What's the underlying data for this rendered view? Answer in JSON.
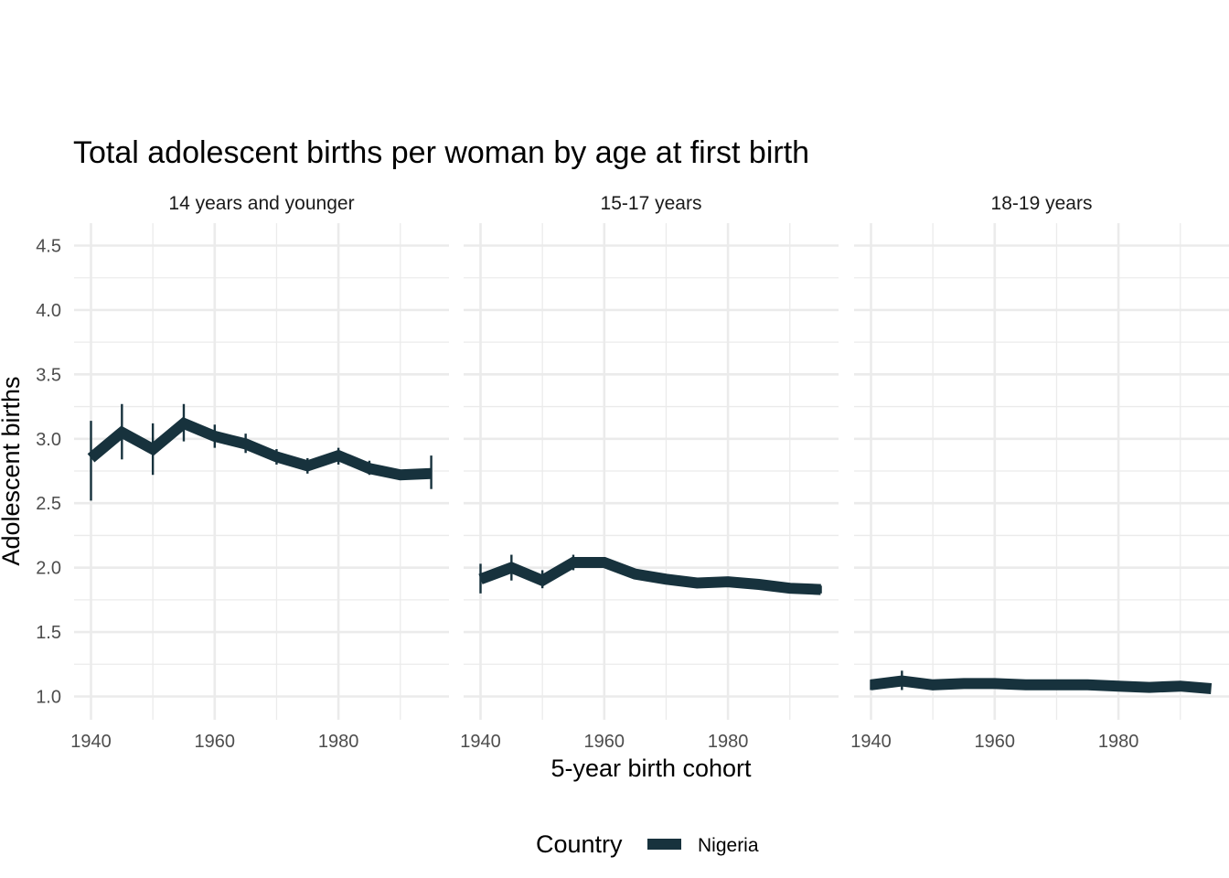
{
  "chart_data": {
    "type": "line",
    "title": "Total adolescent births per woman by age at first birth",
    "xlabel": "5-year birth cohort",
    "ylabel": "Adolescent births",
    "xlim": [
      1940,
      1994
    ],
    "ylim": [
      1.0,
      4.5
    ],
    "x_ticks": [
      1940,
      1960,
      1980
    ],
    "y_ticks": [
      1.0,
      1.5,
      2.0,
      2.5,
      3.0,
      3.5,
      4.0,
      4.5
    ],
    "grid": true,
    "legend": {
      "title": "Country",
      "position": "bottom",
      "entries": [
        "Nigeria"
      ]
    },
    "series_color": "#17323d",
    "panels": [
      {
        "label": "14 years and younger",
        "series": [
          {
            "name": "Nigeria",
            "x": [
              1940,
              1945,
              1950,
              1955,
              1960,
              1965,
              1970,
              1975,
              1980,
              1985,
              1990,
              1995
            ],
            "y": [
              2.85,
              3.05,
              2.92,
              3.12,
              3.02,
              2.96,
              2.86,
              2.79,
              2.87,
              2.77,
              2.72,
              2.73
            ],
            "error_bars": [
              [
                1940,
                2.52,
                3.14
              ],
              [
                1945,
                2.84,
                3.27
              ],
              [
                1950,
                2.72,
                3.12
              ],
              [
                1955,
                2.98,
                3.27
              ],
              [
                1960,
                2.93,
                3.11
              ],
              [
                1965,
                2.89,
                3.04
              ],
              [
                1970,
                2.8,
                2.92
              ],
              [
                1975,
                2.73,
                2.85
              ],
              [
                1980,
                2.8,
                2.93
              ],
              [
                1985,
                2.72,
                2.83
              ],
              [
                1995,
                2.61,
                2.87
              ]
            ]
          }
        ]
      },
      {
        "label": "15-17 years",
        "series": [
          {
            "name": "Nigeria",
            "x": [
              1940,
              1945,
              1950,
              1955,
              1960,
              1965,
              1970,
              1975,
              1980,
              1985,
              1990,
              1995
            ],
            "y": [
              1.91,
              2.0,
              1.9,
              2.04,
              2.04,
              1.95,
              1.91,
              1.88,
              1.89,
              1.87,
              1.84,
              1.83
            ],
            "error_bars": [
              [
                1940,
                1.8,
                2.03
              ],
              [
                1945,
                1.9,
                2.1
              ],
              [
                1950,
                1.84,
                1.98
              ],
              [
                1955,
                1.98,
                2.1
              ],
              [
                1995,
                1.8,
                1.86
              ]
            ]
          }
        ]
      },
      {
        "label": "18-19 years",
        "series": [
          {
            "name": "Nigeria",
            "x": [
              1940,
              1945,
              1950,
              1955,
              1960,
              1965,
              1970,
              1975,
              1980,
              1985,
              1990,
              1995
            ],
            "y": [
              1.09,
              1.12,
              1.09,
              1.1,
              1.1,
              1.09,
              1.09,
              1.09,
              1.08,
              1.07,
              1.08,
              1.06
            ],
            "error_bars": [
              [
                1940,
                1.05,
                1.13
              ],
              [
                1945,
                1.05,
                1.2
              ],
              [
                1950,
                1.06,
                1.12
              ]
            ]
          }
        ]
      }
    ]
  }
}
